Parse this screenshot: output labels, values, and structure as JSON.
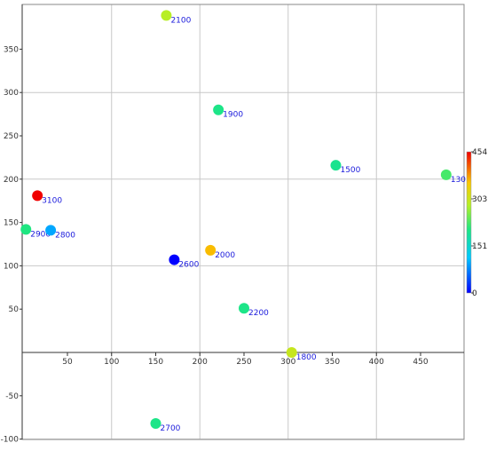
{
  "chart_data": {
    "type": "scatter",
    "title": "",
    "xlabel": "",
    "ylabel": "",
    "xlim": [
      8,
      500
    ],
    "ylim": [
      -100,
      395
    ],
    "x_ticks": [
      50,
      100,
      150,
      200,
      250,
      300,
      350,
      400,
      450
    ],
    "y_ticks": [
      -100,
      -50,
      50,
      100,
      150,
      200,
      250,
      300,
      350
    ],
    "grid": true,
    "points": [
      {
        "label": "2100",
        "x": 162,
        "y": 389,
        "value": 285
      },
      {
        "label": "1900",
        "x": 221,
        "y": 280,
        "value": 200
      },
      {
        "label": "1500",
        "x": 354,
        "y": 216,
        "value": 195
      },
      {
        "label": "130",
        "x": 479,
        "y": 205,
        "value": 225
      },
      {
        "label": "3100",
        "x": 16,
        "y": 181,
        "value": 454
      },
      {
        "label": "2900",
        "x": 3,
        "y": 142,
        "value": 205
      },
      {
        "label": "2800",
        "x": 31,
        "y": 141,
        "value": 95
      },
      {
        "label": "2000",
        "x": 212,
        "y": 118,
        "value": 360
      },
      {
        "label": "2600",
        "x": 171,
        "y": 107,
        "value": 0
      },
      {
        "label": "2200",
        "x": 250,
        "y": 51,
        "value": 200
      },
      {
        "label": "1800",
        "x": 304,
        "y": 0,
        "value": 300
      },
      {
        "label": "2700",
        "x": 150,
        "y": -82,
        "value": 200
      }
    ],
    "colorbar": {
      "min": 0,
      "max": 454,
      "tick_labels": [
        "454",
        "303",
        "151",
        "0"
      ]
    }
  }
}
